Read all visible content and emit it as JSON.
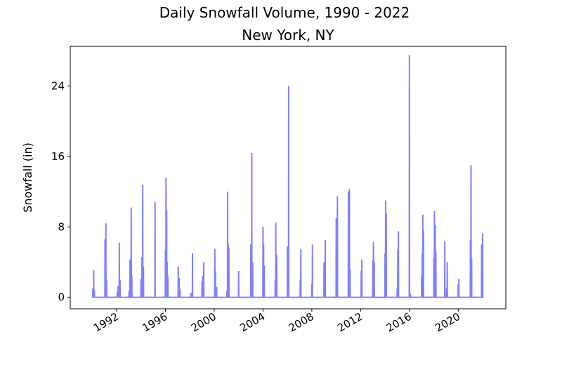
{
  "chart_data": {
    "type": "line",
    "title": "Daily Snowfall Volume, 1990 - 2022",
    "subtitle": "New York, NY",
    "xlabel": "",
    "ylabel": "Snowfall (in)",
    "xlim": [
      1988.2,
      2023.9
    ],
    "ylim": [
      -1.3,
      28.5
    ],
    "x_ticks": [
      "1992",
      "1996",
      "2000",
      "2004",
      "2008",
      "2012",
      "2016",
      "2020"
    ],
    "y_ticks": [
      "0",
      "8",
      "16",
      "24"
    ],
    "grid": false,
    "legend": "none",
    "series": [
      {
        "color": "#8080ff",
        "baseline": 0,
        "x_range": [
          1990.0,
          2022.0
        ],
        "events": [
          [
            1990.05,
            1.0
          ],
          [
            1990.12,
            3.1
          ],
          [
            1990.18,
            0.8
          ],
          [
            1991.05,
            6.6
          ],
          [
            1991.12,
            8.4
          ],
          [
            1991.18,
            2.0
          ],
          [
            1992.05,
            0.6
          ],
          [
            1992.12,
            1.3
          ],
          [
            1992.22,
            6.2
          ],
          [
            1992.28,
            2.0
          ],
          [
            1993.02,
            0.7
          ],
          [
            1993.1,
            4.3
          ],
          [
            1993.2,
            10.2
          ],
          [
            1993.25,
            2.5
          ],
          [
            1994.0,
            2.1
          ],
          [
            1994.08,
            4.6
          ],
          [
            1994.14,
            12.8
          ],
          [
            1994.2,
            3.5
          ],
          [
            1995.15,
            10.8
          ],
          [
            1996.0,
            5.4
          ],
          [
            1996.05,
            13.6
          ],
          [
            1996.1,
            9.9
          ],
          [
            1996.15,
            4.0
          ],
          [
            1996.2,
            2.4
          ],
          [
            1997.05,
            3.5
          ],
          [
            1997.12,
            2.2
          ],
          [
            1997.2,
            1.0
          ],
          [
            1998.1,
            0.5
          ],
          [
            1998.22,
            5.0
          ],
          [
            1999.0,
            1.8
          ],
          [
            1999.05,
            2.4
          ],
          [
            1999.14,
            4.0
          ],
          [
            2000.05,
            5.5
          ],
          [
            2000.1,
            3.0
          ],
          [
            2000.2,
            1.2
          ],
          [
            2001.05,
            0.8
          ],
          [
            2001.1,
            12.0
          ],
          [
            2001.15,
            6.0
          ],
          [
            2001.2,
            5.6
          ],
          [
            2002.0,
            3.0
          ],
          [
            2003.0,
            6.0
          ],
          [
            2003.08,
            16.4
          ],
          [
            2003.15,
            4.0
          ],
          [
            2004.0,
            8.0
          ],
          [
            2004.05,
            6.0
          ],
          [
            2004.1,
            3.6
          ],
          [
            2005.0,
            2.0
          ],
          [
            2005.05,
            8.5
          ],
          [
            2005.12,
            4.8
          ],
          [
            2006.0,
            5.8
          ],
          [
            2006.1,
            24.0
          ],
          [
            2007.05,
            2.0
          ],
          [
            2007.1,
            5.5
          ],
          [
            2008.0,
            1.5
          ],
          [
            2008.05,
            6.0
          ],
          [
            2009.0,
            4.0
          ],
          [
            2009.1,
            6.5
          ],
          [
            2010.0,
            9.0
          ],
          [
            2010.1,
            11.5
          ],
          [
            2011.0,
            12.0
          ],
          [
            2011.08,
            12.3
          ],
          [
            2011.13,
            3.2
          ],
          [
            2012.05,
            3.0
          ],
          [
            2012.1,
            4.3
          ],
          [
            2013.0,
            4.3
          ],
          [
            2013.05,
            6.3
          ],
          [
            2013.12,
            4.0
          ],
          [
            2014.0,
            5.0
          ],
          [
            2014.05,
            11.0
          ],
          [
            2014.1,
            9.5
          ],
          [
            2015.0,
            1.0
          ],
          [
            2015.05,
            5.5
          ],
          [
            2015.1,
            7.5
          ],
          [
            2016.0,
            27.5
          ],
          [
            2016.08,
            0.4
          ],
          [
            2017.0,
            2.5
          ],
          [
            2017.05,
            5.0
          ],
          [
            2017.1,
            9.4
          ],
          [
            2017.15,
            7.6
          ],
          [
            2018.0,
            4.5
          ],
          [
            2018.05,
            9.8
          ],
          [
            2018.12,
            8.2
          ],
          [
            2018.17,
            5.2
          ],
          [
            2018.9,
            6.4
          ],
          [
            2019.05,
            1.0
          ],
          [
            2019.1,
            4.0
          ],
          [
            2020.0,
            1.5
          ],
          [
            2020.05,
            2.1
          ],
          [
            2021.0,
            6.5
          ],
          [
            2021.05,
            15.0
          ],
          [
            2021.1,
            4.5
          ],
          [
            2021.92,
            6.0
          ],
          [
            2022.0,
            7.3
          ]
        ]
      }
    ]
  }
}
